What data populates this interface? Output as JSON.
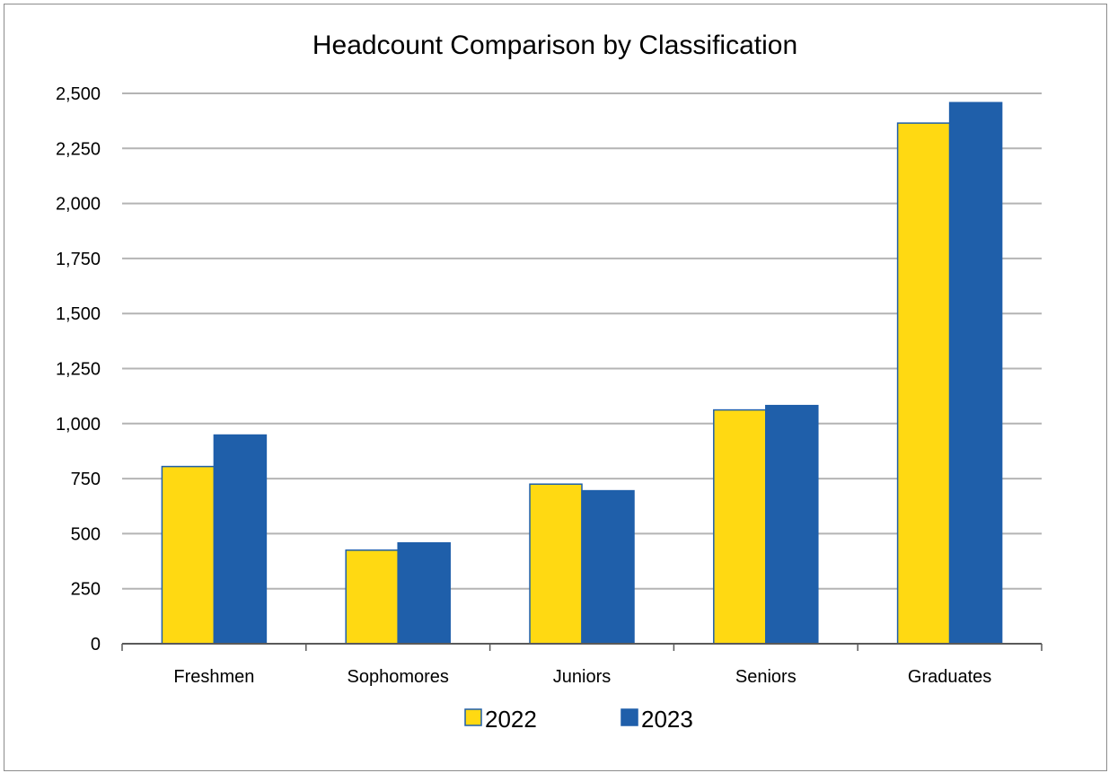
{
  "chart_data": {
    "type": "bar",
    "title": "Headcount Comparison by Classification",
    "xlabel": "",
    "ylabel": "",
    "categories": [
      "Freshmen",
      "Sophomores",
      "Juniors",
      "Seniors",
      "Graduates"
    ],
    "series": [
      {
        "name": "2022",
        "values": [
          805,
          425,
          725,
          1062,
          2365
        ],
        "color": "#FFD912"
      },
      {
        "name": "2023",
        "values": [
          948,
          458,
          695,
          1082,
          2458
        ],
        "color": "#1F5FAA"
      }
    ],
    "ylim": [
      0,
      2500
    ],
    "yticks": [
      0,
      250,
      500,
      750,
      1000,
      1250,
      1500,
      1750,
      2000,
      2250,
      2500
    ],
    "ytick_labels": [
      "0",
      "250",
      "500",
      "750",
      "1,000",
      "1,250",
      "1,500",
      "1,750",
      "2,000",
      "2,250",
      "2,500"
    ],
    "grid": true,
    "legend_position": "bottom",
    "colors": {
      "gridline": "#B4B4B4",
      "axis": "#595959",
      "bar_outline": "#1F5FAA",
      "frame": "#8C8C8C"
    }
  }
}
